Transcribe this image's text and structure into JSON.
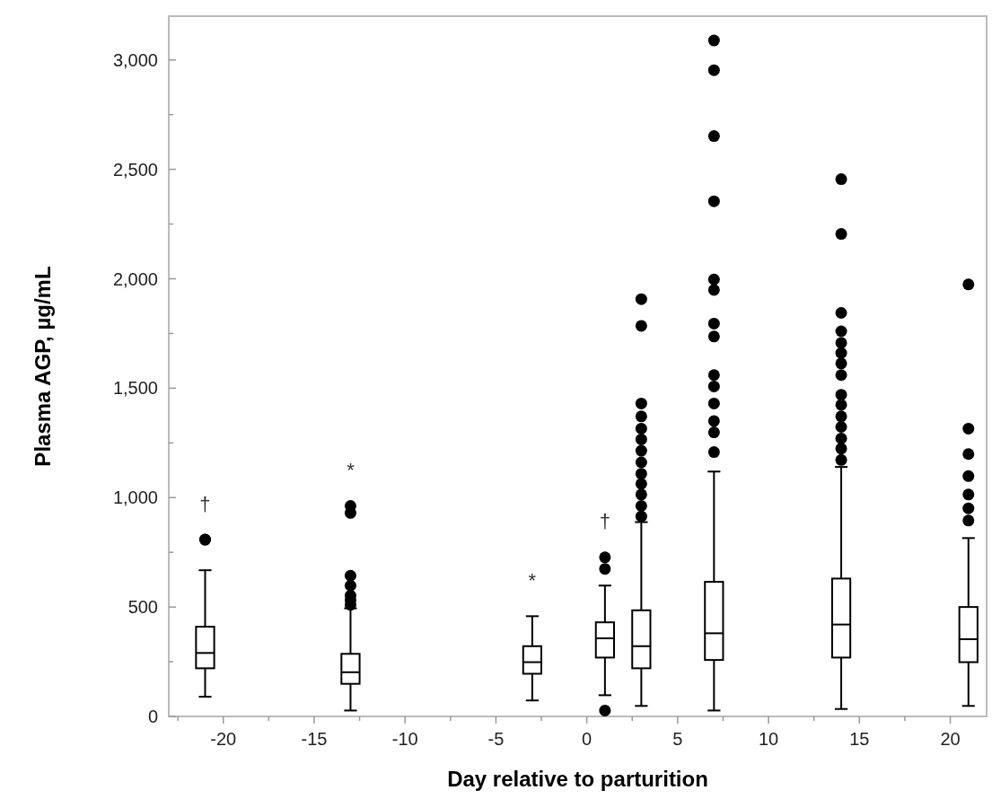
{
  "chart_data": {
    "type": "box",
    "xlabel": "Day relative to parturition",
    "ylabel": "Plasma AGP, µg/mL",
    "x": [
      -21,
      -13,
      -3,
      1,
      3,
      7,
      14,
      21
    ],
    "boxes": [
      {
        "low": 90,
        "q1": 220,
        "median": 290,
        "q3": 410,
        "high": 668,
        "outliers": [
          808,
          808
        ]
      },
      {
        "low": 27,
        "q1": 149,
        "median": 202,
        "q3": 286,
        "high": 494,
        "outliers": [
          510,
          531,
          552,
          598,
          643,
          930,
          962
        ]
      },
      {
        "low": 73,
        "q1": 195,
        "median": 248,
        "q3": 321,
        "high": 458
      },
      {
        "low": 97,
        "q1": 269,
        "median": 357,
        "q3": 430,
        "high": 598,
        "outliers": [
          27,
          674,
          727
        ]
      },
      {
        "low": 48,
        "q1": 220,
        "median": 321,
        "q3": 485,
        "high": 888,
        "outliers": [
          914,
          962,
          1014,
          1063,
          1109,
          1161,
          1214,
          1266,
          1315,
          1371,
          1430,
          1785,
          1907
        ]
      },
      {
        "low": 27,
        "q1": 258,
        "median": 380,
        "q3": 615,
        "high": 1119,
        "outliers": [
          1208,
          1298,
          1350,
          1430,
          1508,
          1560,
          1736,
          1795,
          1949,
          1997,
          2354,
          2652,
          2953,
          3089
        ]
      },
      {
        "low": 34,
        "q1": 269,
        "median": 420,
        "q3": 630,
        "high": 1140,
        "outliers": [
          1172,
          1224,
          1270,
          1323,
          1371,
          1424,
          1470,
          1560,
          1613,
          1661,
          1707,
          1760,
          1844,
          2205,
          2455
        ]
      },
      {
        "low": 48,
        "q1": 248,
        "median": 353,
        "q3": 500,
        "high": 815,
        "outliers": [
          895,
          951,
          1014,
          1098,
          1199,
          1315,
          1974
        ]
      }
    ],
    "xlim": [
      -23,
      22
    ],
    "xticks": [
      {
        "value": -22.5,
        "label": null
      },
      {
        "value": -20,
        "label": "-20"
      },
      {
        "value": -17.5,
        "label": null
      },
      {
        "value": -15,
        "label": "-15"
      },
      {
        "value": -12.5,
        "label": null
      },
      {
        "value": -10,
        "label": "-10"
      },
      {
        "value": -7.5,
        "label": null
      },
      {
        "value": -5,
        "label": "-5"
      },
      {
        "value": -2.5,
        "label": null
      },
      0,
      {
        "value": 2.5,
        "label": null
      },
      5,
      {
        "value": 7.5,
        "label": null
      },
      10,
      {
        "value": 12.5,
        "label": null
      },
      15,
      {
        "value": 17.5,
        "label": null
      },
      20
    ],
    "ylim": [
      0,
      3200
    ],
    "yticks": [
      0,
      {
        "value": 250,
        "label": null
      },
      500,
      {
        "value": 750,
        "label": null
      },
      {
        "value": 1000,
        "label": "1,000"
      },
      {
        "value": 1250,
        "label": null
      },
      {
        "value": 1500,
        "label": "1,500"
      },
      {
        "value": 1750,
        "label": null
      },
      {
        "value": 2000,
        "label": "2,000"
      },
      {
        "value": 2250,
        "label": null
      },
      {
        "value": 2500,
        "label": "2,500"
      },
      {
        "value": 2750,
        "label": null
      },
      {
        "value": 3000,
        "label": "3,000"
      }
    ],
    "annotations": [
      "†",
      "*",
      "*",
      "†"
    ],
    "grid": false,
    "marker": "circle"
  }
}
